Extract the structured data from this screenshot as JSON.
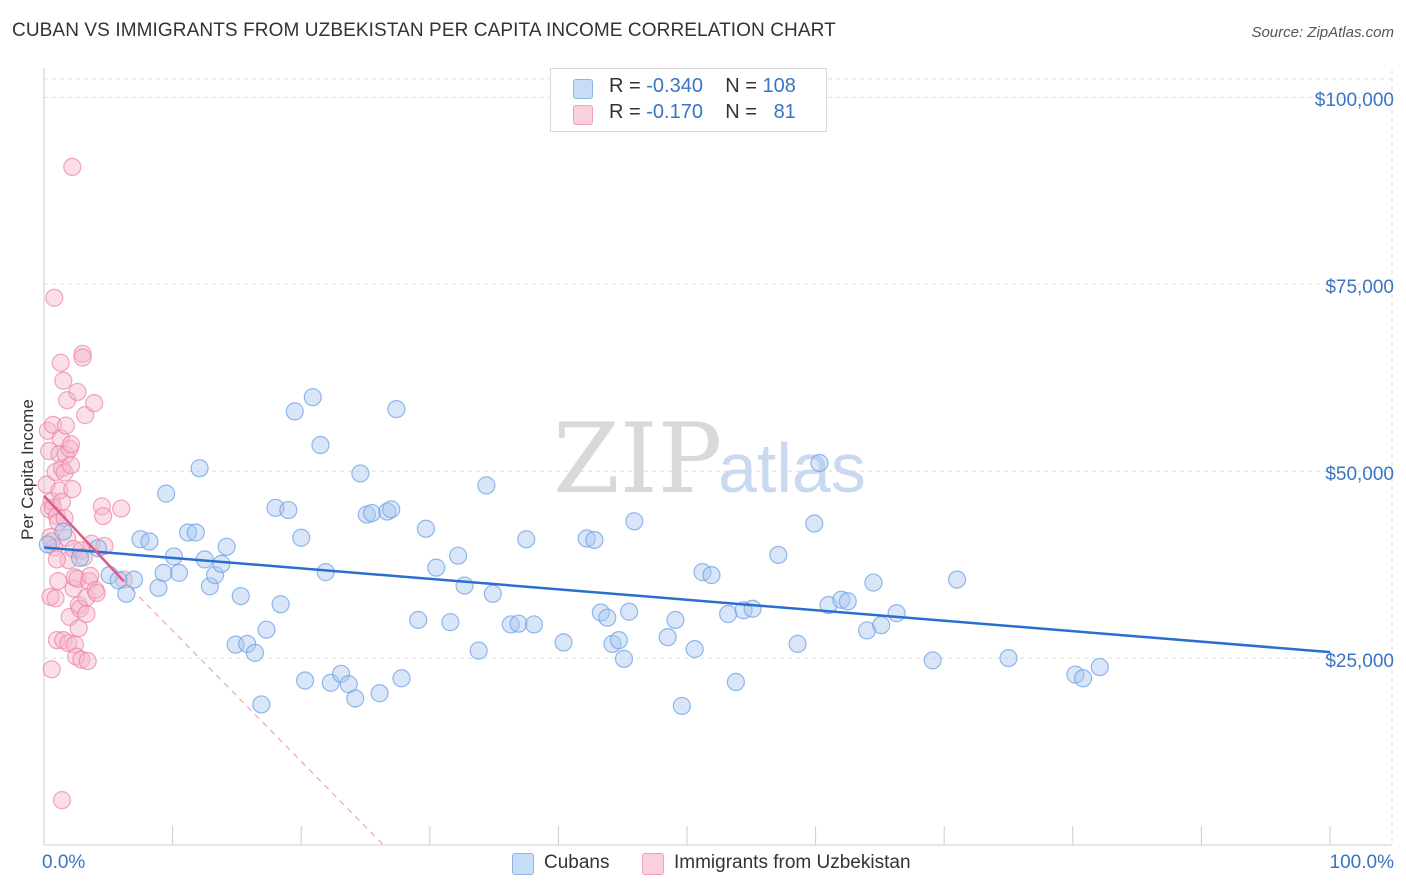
{
  "header": {
    "title": "CUBAN VS IMMIGRANTS FROM UZBEKISTAN PER CAPITA INCOME CORRELATION CHART",
    "source": "Source: ZipAtlas.com"
  },
  "watermark": {
    "zip": "ZIP",
    "atlas": "atlas"
  },
  "legend": {
    "rows": [
      {
        "r_label": "R =",
        "r_value": "-0.340",
        "n_label": "N =",
        "n_value": "108",
        "color": "#a9c8f0"
      },
      {
        "r_label": "R =",
        "r_value": "-0.170",
        "n_label": "N =",
        "n_value": "81",
        "color": "#f5b8cb"
      }
    ]
  },
  "bottom_legend": {
    "cubans": "Cubans",
    "uzbek": "Immigrants from Uzbekistan"
  },
  "chart_data": {
    "type": "scatter",
    "title": "CUBAN VS IMMIGRANTS FROM UZBEKISTAN PER CAPITA INCOME CORRELATION CHART",
    "xlabel": "",
    "ylabel": "Per Capita Income",
    "xlim": [
      0,
      100
    ],
    "ylim": [
      0,
      105000
    ],
    "x_tick_labels": [
      "0.0%",
      "100.0%"
    ],
    "y_ticks": [
      {
        "value": 25000,
        "label": "$25,000"
      },
      {
        "value": 50000,
        "label": "$50,000"
      },
      {
        "value": 75000,
        "label": "$75,000"
      },
      {
        "value": 100000,
        "label": "$100,000"
      }
    ],
    "grid": true,
    "series": [
      {
        "name": "Cubans",
        "color": "#6fa1e6",
        "fill": "#a9c8f0",
        "line_color": "#2a6fd0",
        "R": -0.34,
        "N": 108,
        "trend": {
          "x0": 0,
          "y0": 39800,
          "x1": 100,
          "y1": 25800
        },
        "points": [
          [
            0.3,
            40200
          ],
          [
            1.5,
            41900
          ],
          [
            2.8,
            38400
          ],
          [
            4.2,
            39700
          ],
          [
            5.1,
            36100
          ],
          [
            5.8,
            35400
          ],
          [
            6.4,
            33600
          ],
          [
            7.0,
            35500
          ],
          [
            7.5,
            40900
          ],
          [
            8.2,
            40600
          ],
          [
            8.9,
            34400
          ],
          [
            9.3,
            36400
          ],
          [
            9.5,
            47000
          ],
          [
            10.1,
            38600
          ],
          [
            10.5,
            36400
          ],
          [
            11.2,
            41800
          ],
          [
            11.8,
            41800
          ],
          [
            12.1,
            50400
          ],
          [
            12.5,
            38200
          ],
          [
            12.9,
            34600
          ],
          [
            13.3,
            36100
          ],
          [
            13.8,
            37600
          ],
          [
            14.2,
            39900
          ],
          [
            14.9,
            26800
          ],
          [
            15.3,
            33300
          ],
          [
            15.8,
            26900
          ],
          [
            16.4,
            25700
          ],
          [
            16.9,
            18800
          ],
          [
            17.3,
            28800
          ],
          [
            18.0,
            45100
          ],
          [
            18.4,
            32200
          ],
          [
            19.0,
            44800
          ],
          [
            19.5,
            58000
          ],
          [
            20.0,
            41100
          ],
          [
            20.3,
            22000
          ],
          [
            20.9,
            59900
          ],
          [
            21.5,
            53500
          ],
          [
            21.9,
            36500
          ],
          [
            22.3,
            21700
          ],
          [
            23.1,
            22900
          ],
          [
            23.7,
            21500
          ],
          [
            24.2,
            19600
          ],
          [
            24.6,
            49700
          ],
          [
            25.1,
            44200
          ],
          [
            25.5,
            44400
          ],
          [
            26.1,
            20300
          ],
          [
            26.7,
            44600
          ],
          [
            27.0,
            44900
          ],
          [
            27.4,
            58300
          ],
          [
            27.8,
            22300
          ],
          [
            29.1,
            30100
          ],
          [
            29.7,
            42300
          ],
          [
            30.5,
            37100
          ],
          [
            31.6,
            29800
          ],
          [
            32.2,
            38700
          ],
          [
            32.7,
            34700
          ],
          [
            33.8,
            26000
          ],
          [
            34.4,
            48100
          ],
          [
            34.9,
            33600
          ],
          [
            36.3,
            29500
          ],
          [
            36.9,
            29600
          ],
          [
            37.5,
            40900
          ],
          [
            38.1,
            29500
          ],
          [
            40.4,
            27100
          ],
          [
            42.2,
            41000
          ],
          [
            42.8,
            40800
          ],
          [
            43.3,
            31100
          ],
          [
            43.8,
            30400
          ],
          [
            44.2,
            26900
          ],
          [
            44.7,
            27400
          ],
          [
            45.1,
            24900
          ],
          [
            45.5,
            31200
          ],
          [
            45.9,
            43300
          ],
          [
            48.5,
            27800
          ],
          [
            49.1,
            30100
          ],
          [
            49.6,
            18600
          ],
          [
            50.6,
            26200
          ],
          [
            51.2,
            36500
          ],
          [
            51.9,
            36100
          ],
          [
            53.2,
            30900
          ],
          [
            53.8,
            21800
          ],
          [
            54.4,
            31400
          ],
          [
            55.1,
            31600
          ],
          [
            57.1,
            38800
          ],
          [
            58.6,
            26900
          ],
          [
            59.9,
            43000
          ],
          [
            60.3,
            51100
          ],
          [
            61.0,
            32100
          ],
          [
            62.0,
            32800
          ],
          [
            62.5,
            32600
          ],
          [
            64.0,
            28700
          ],
          [
            64.5,
            35100
          ],
          [
            65.1,
            29400
          ],
          [
            66.3,
            31000
          ],
          [
            69.1,
            24700
          ],
          [
            71.0,
            35500
          ],
          [
            75.0,
            25000
          ],
          [
            80.2,
            22800
          ],
          [
            80.8,
            22300
          ],
          [
            82.1,
            23800
          ]
        ]
      },
      {
        "name": "Immigrants from Uzbekistan",
        "color": "#ec82a3",
        "fill": "#f5b8cb",
        "line_color": "#e05a88",
        "R": -0.17,
        "N": 81,
        "trend": {
          "x0": 0,
          "y0": 46700,
          "x1": 6.2,
          "y1": 35300
        },
        "trend_extension": {
          "x0": 6.2,
          "y0": 35300,
          "x1": 26.4,
          "y1": 0
        },
        "points": [
          [
            0.2,
            48200
          ],
          [
            0.3,
            55400
          ],
          [
            0.4,
            52700
          ],
          [
            0.4,
            44900
          ],
          [
            0.5,
            41200
          ],
          [
            0.5,
            33200
          ],
          [
            0.6,
            23500
          ],
          [
            0.6,
            46000
          ],
          [
            0.7,
            56200
          ],
          [
            0.7,
            45100
          ],
          [
            0.8,
            39800
          ],
          [
            0.8,
            73200
          ],
          [
            0.9,
            49900
          ],
          [
            0.9,
            33000
          ],
          [
            1.0,
            27400
          ],
          [
            1.0,
            44000
          ],
          [
            1.1,
            43200
          ],
          [
            1.1,
            35300
          ],
          [
            1.2,
            52300
          ],
          [
            1.2,
            47400
          ],
          [
            1.3,
            64500
          ],
          [
            1.3,
            54400
          ],
          [
            1.4,
            50400
          ],
          [
            1.4,
            45900
          ],
          [
            1.5,
            27400
          ],
          [
            1.5,
            62100
          ],
          [
            1.6,
            49800
          ],
          [
            1.6,
            43700
          ],
          [
            1.7,
            56100
          ],
          [
            1.7,
            52200
          ],
          [
            1.8,
            41100
          ],
          [
            1.8,
            59500
          ],
          [
            1.9,
            38100
          ],
          [
            1.9,
            27000
          ],
          [
            2.0,
            30500
          ],
          [
            2.0,
            53000
          ],
          [
            2.1,
            53600
          ],
          [
            2.1,
            50800
          ],
          [
            2.2,
            90700
          ],
          [
            2.2,
            47600
          ],
          [
            2.3,
            39600
          ],
          [
            2.3,
            34300
          ],
          [
            2.4,
            26800
          ],
          [
            2.4,
            35800
          ],
          [
            2.5,
            25200
          ],
          [
            2.6,
            60600
          ],
          [
            2.6,
            35600
          ],
          [
            2.7,
            32100
          ],
          [
            2.7,
            29000
          ],
          [
            2.8,
            31600
          ],
          [
            2.9,
            24800
          ],
          [
            2.9,
            39400
          ],
          [
            3.0,
            65700
          ],
          [
            3.0,
            65200
          ],
          [
            3.1,
            38500
          ],
          [
            3.2,
            57500
          ],
          [
            3.3,
            33100
          ],
          [
            3.3,
            30900
          ],
          [
            3.4,
            24600
          ],
          [
            3.5,
            35300
          ],
          [
            3.6,
            36000
          ],
          [
            3.7,
            40300
          ],
          [
            3.9,
            59100
          ],
          [
            4.0,
            34100
          ],
          [
            4.1,
            33700
          ],
          [
            4.5,
            45300
          ],
          [
            4.6,
            44000
          ],
          [
            4.7,
            40000
          ],
          [
            6.0,
            45000
          ],
          [
            6.2,
            35500
          ],
          [
            1.4,
            6000
          ],
          [
            0.6,
            40600
          ],
          [
            1.0,
            38200
          ]
        ]
      }
    ]
  }
}
